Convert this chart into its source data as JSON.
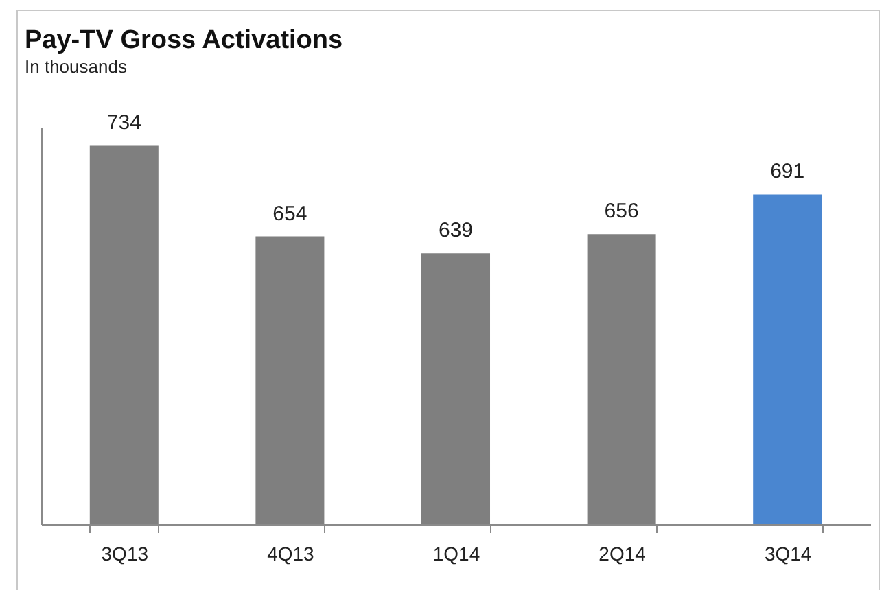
{
  "chart_data": {
    "type": "bar",
    "title": "Pay-TV Gross Activations",
    "subtitle": "In thousands",
    "categories": [
      "3Q13",
      "4Q13",
      "1Q14",
      "2Q14",
      "3Q14"
    ],
    "values": [
      734,
      654,
      639,
      656,
      691
    ],
    "colors": [
      "#7f7f7f",
      "#7f7f7f",
      "#7f7f7f",
      "#7f7f7f",
      "#4a86d0"
    ],
    "data_labels": true,
    "ylim": [
      400,
      750
    ],
    "tick_labels": "x"
  }
}
